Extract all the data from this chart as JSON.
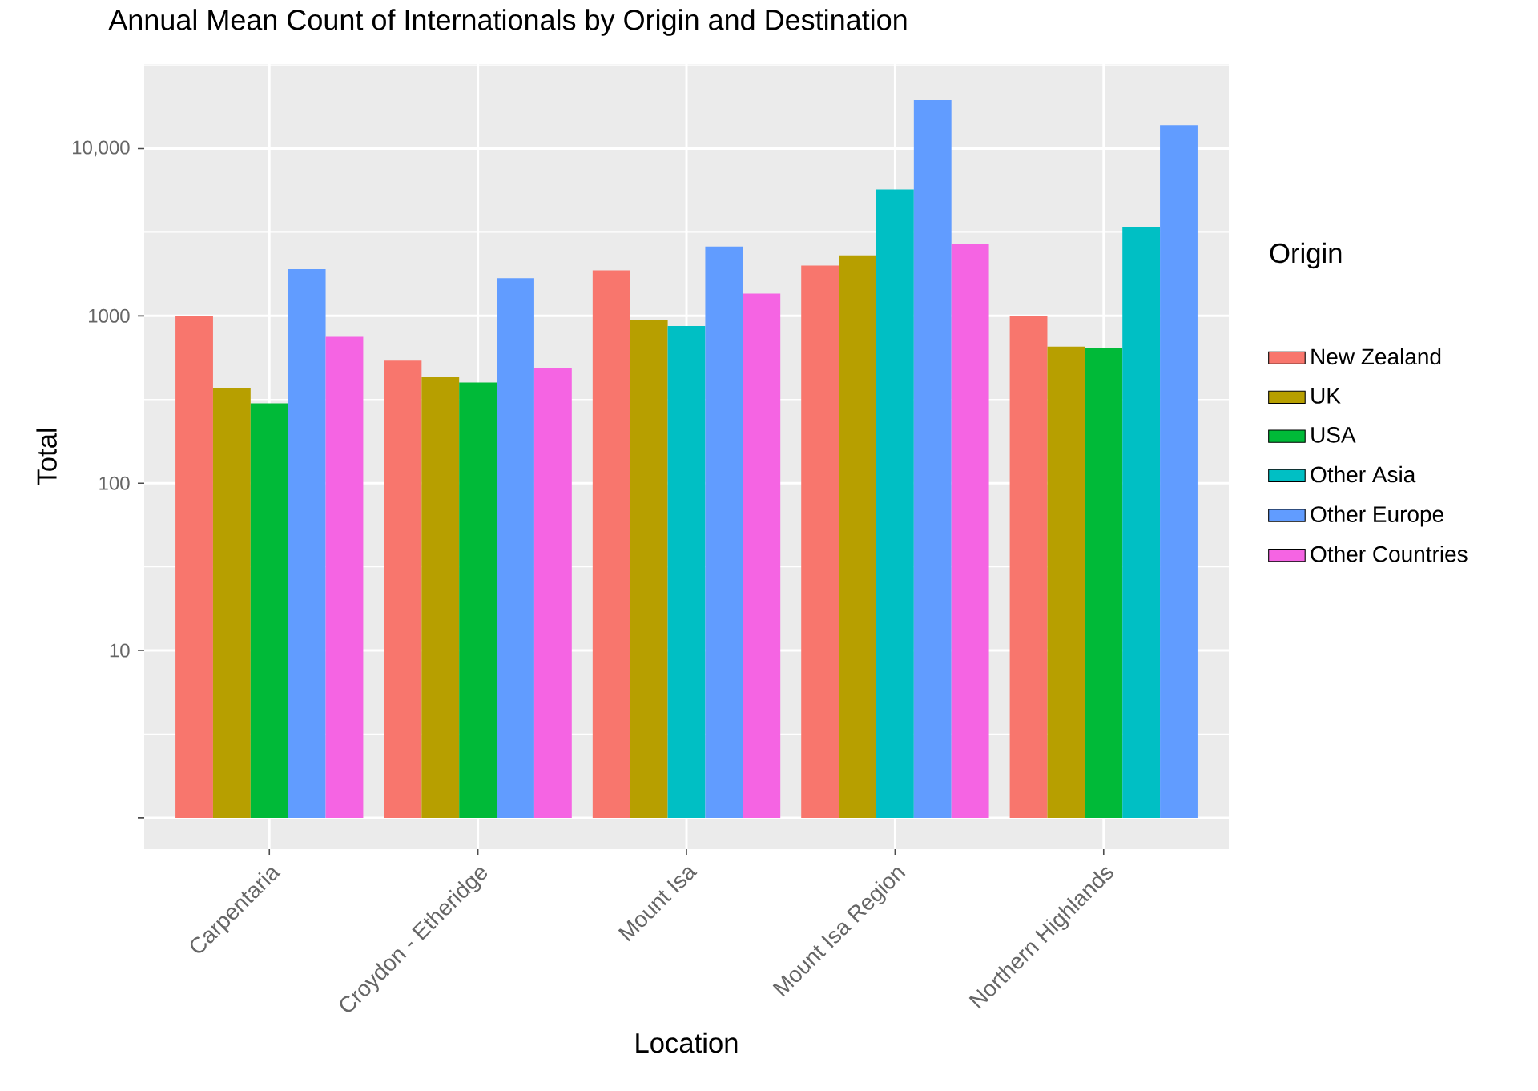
{
  "chart_data": {
    "type": "bar",
    "title": "Annual Mean Count of Internationals by Origin and Destination",
    "xlabel": "Location",
    "ylabel": "Total",
    "legend_title": "Origin",
    "categories": [
      "Carpentaria",
      "Croydon - Etheridge",
      "Mount Isa",
      "Mount Isa Region",
      "Northern Highlands"
    ],
    "series": [
      {
        "name": "New Zealand",
        "color": "#F8766D",
        "base": [
          1,
          1,
          1,
          1,
          1
        ],
        "values": [
          999,
          539,
          1869,
          1999,
          994
        ]
      },
      {
        "name": "UK",
        "color": "#B79F00",
        "base": [
          1,
          1,
          1,
          1,
          1
        ],
        "values": [
          369,
          429,
          949,
          2299,
          654
        ]
      },
      {
        "name": "USA",
        "color": "#00BA38",
        "base": [
          1,
          1,
          null,
          null,
          1
        ],
        "values": [
          299,
          399,
          null,
          null,
          644
        ]
      },
      {
        "name": "Other Asia",
        "color": "#00BFC4",
        "base": [
          null,
          null,
          1,
          1,
          1
        ],
        "values": [
          null,
          null,
          869,
          5699,
          3399
        ]
      },
      {
        "name": "Other Europe",
        "color": "#619CFF",
        "base": [
          1,
          1,
          1,
          1,
          1
        ],
        "values": [
          1899,
          1679,
          2599,
          19499,
          13799
        ]
      },
      {
        "name": "Other Countries",
        "color": "#F564E3",
        "base": [
          1,
          1,
          1,
          1,
          null
        ],
        "values": [
          749,
          489,
          1359,
          2699,
          null
        ]
      }
    ],
    "log": "y",
    "ylim": [
      0.65,
      32000
    ],
    "yticks": [
      {
        "value": 1,
        "label": null
      },
      10,
      100,
      1000,
      {
        "value": 10000,
        "label": "10,000"
      }
    ],
    "grid": true,
    "legend": "right"
  }
}
